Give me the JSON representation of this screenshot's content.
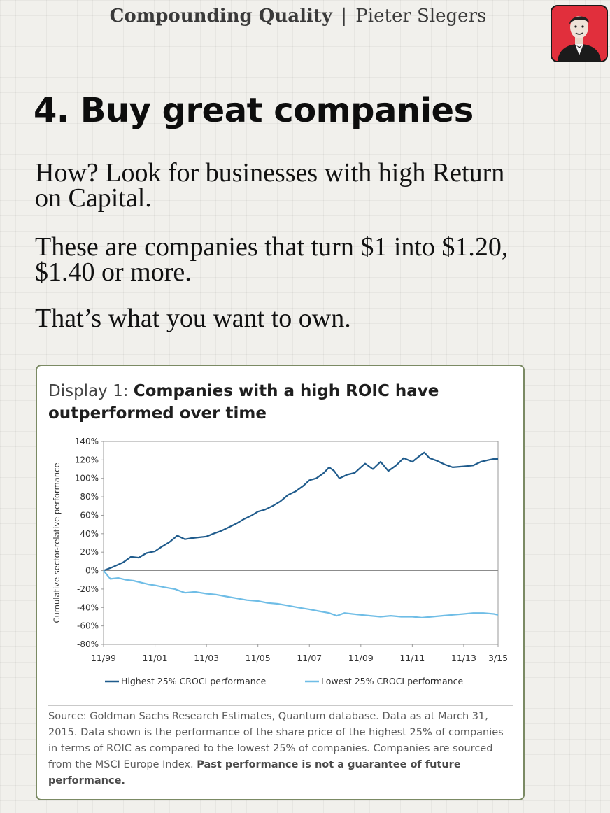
{
  "header": {
    "brand": "Compounding Quality",
    "separator": "|",
    "author": "Pieter Slegers"
  },
  "avatar": {
    "icon": "author-portrait-icon",
    "background": "#e12f3c"
  },
  "title": "4. Buy great companies",
  "paragraphs": {
    "p1_line1": "How? Look for businesses with high Return",
    "p1_line2": "on Capital.",
    "p2_line1": "These are companies that turn $1 into $1.20,",
    "p2_line2": "$1.40 or more.",
    "p3": "That’s what you want to own."
  },
  "card": {
    "title_prefix": "Display 1: ",
    "title_line1_bold": "Companies with a high ROIC have",
    "title_line2_bold": "outperformed over time",
    "source_text": "Source: Goldman Sachs Research Estimates, Quantum database. Data as at March 31, 2015. Data shown is the performance of the share price of the highest 25% of companies in terms of ROIC as compared to the lowest 25% of companies. Companies are sourced from the MSCI Europe Index. ",
    "source_bold": "Past performance is not a guarantee of future performance."
  },
  "chart_data": {
    "type": "line",
    "title": "Companies with a high ROIC have outperformed over time",
    "xlabel": "",
    "ylabel": "Cumulative sector-relative performance",
    "x_range": [
      1999.833,
      2015.167
    ],
    "ylim": [
      -80,
      140
    ],
    "yticks": [
      140,
      120,
      100,
      80,
      60,
      40,
      20,
      0,
      -20,
      -40,
      -60,
      -80
    ],
    "ytick_labels": [
      "140%",
      "120%",
      "100%",
      "80%",
      "60%",
      "40%",
      "20%",
      "0%",
      "-20%",
      "-40%",
      "-60%",
      "-80%"
    ],
    "xticks": [
      1999.833,
      2001.833,
      2003.833,
      2005.833,
      2007.833,
      2009.833,
      2011.833,
      2013.833,
      2015.167
    ],
    "xtick_labels": [
      "11/99",
      "11/01",
      "11/03",
      "11/05",
      "11/07",
      "11/09",
      "11/11",
      "11/13",
      "3/15"
    ],
    "grid": false,
    "legend_position": "bottom",
    "series": [
      {
        "name": "Highest 25% CROCI performance",
        "color": "#1f5b8c",
        "x": [
          1999.833,
          2000.2,
          2000.6,
          2000.9,
          2001.2,
          2001.5,
          2001.833,
          2002.1,
          2002.4,
          2002.7,
          2003.0,
          2003.2,
          2003.5,
          2003.833,
          2004.1,
          2004.4,
          2004.7,
          2005.0,
          2005.3,
          2005.6,
          2005.833,
          2006.1,
          2006.4,
          2006.7,
          2007.0,
          2007.3,
          2007.6,
          2007.833,
          2008.1,
          2008.4,
          2008.6,
          2008.8,
          2009.0,
          2009.3,
          2009.6,
          2009.833,
          2010.0,
          2010.3,
          2010.6,
          2010.9,
          2011.2,
          2011.5,
          2011.833,
          2012.1,
          2012.3,
          2012.5,
          2012.8,
          2013.1,
          2013.4,
          2013.833,
          2014.2,
          2014.5,
          2014.8,
          2015.0,
          2015.167
        ],
        "values": [
          0,
          4,
          9,
          15,
          14,
          19,
          21,
          26,
          31,
          38,
          34,
          35,
          36,
          37,
          40,
          43,
          47,
          51,
          56,
          60,
          64,
          66,
          70,
          75,
          82,
          86,
          92,
          98,
          100,
          106,
          112,
          108,
          100,
          104,
          106,
          112,
          116,
          110,
          118,
          108,
          114,
          122,
          118,
          124,
          128,
          122,
          119,
          115,
          112,
          113,
          114,
          118,
          120,
          121,
          121
        ]
      },
      {
        "name": "Lowest 25% CROCI performance",
        "color": "#6fbde6",
        "x": [
          1999.833,
          2000.1,
          2000.4,
          2000.7,
          2001.0,
          2001.3,
          2001.6,
          2001.833,
          2002.2,
          2002.6,
          2003.0,
          2003.4,
          2003.833,
          2004.2,
          2004.6,
          2005.0,
          2005.4,
          2005.833,
          2006.2,
          2006.6,
          2007.0,
          2007.4,
          2007.833,
          2008.2,
          2008.6,
          2008.9,
          2009.2,
          2009.5,
          2009.833,
          2010.2,
          2010.6,
          2011.0,
          2011.4,
          2011.833,
          2012.2,
          2012.6,
          2013.0,
          2013.4,
          2013.833,
          2014.2,
          2014.6,
          2015.0,
          2015.167
        ],
        "values": [
          0,
          -9,
          -8,
          -10,
          -11,
          -13,
          -15,
          -16,
          -18,
          -20,
          -24,
          -23,
          -25,
          -26,
          -28,
          -30,
          -32,
          -33,
          -35,
          -36,
          -38,
          -40,
          -42,
          -44,
          -46,
          -49,
          -46,
          -47,
          -48,
          -49,
          -50,
          -49,
          -50,
          -50,
          -51,
          -50,
          -49,
          -48,
          -47,
          -46,
          -46,
          -47,
          -48
        ]
      }
    ]
  }
}
